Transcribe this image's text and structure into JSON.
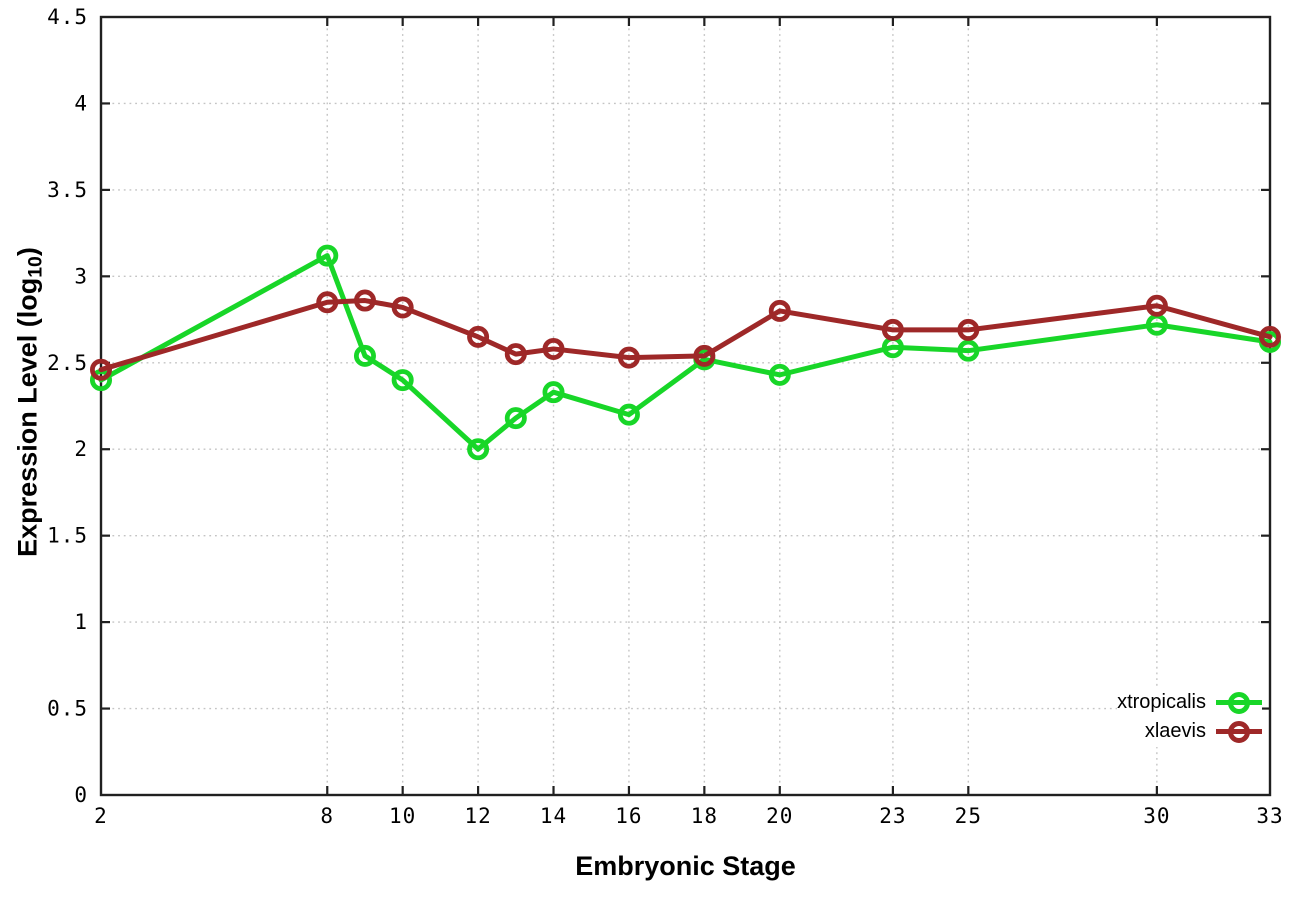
{
  "chart_data": {
    "type": "line",
    "title": "",
    "xlabel": "Embryonic Stage",
    "ylabel": "Expression Level (log10)",
    "ylabel_parts": {
      "prefix": "Expression Level (log",
      "subscript": "10",
      "suffix": ")"
    },
    "xlim": [
      2,
      33
    ],
    "ylim": [
      0,
      4.5
    ],
    "xticks": [
      2,
      8,
      10,
      12,
      14,
      16,
      18,
      20,
      23,
      25,
      30,
      33
    ],
    "yticks": [
      0,
      0.5,
      1,
      1.5,
      2,
      2.5,
      3,
      3.5,
      4,
      4.5
    ],
    "grid": "dotted",
    "legend_position": "bottom-right",
    "marker": "open-circle",
    "x": [
      2,
      8,
      9,
      10,
      12,
      13,
      14,
      16,
      18,
      20,
      23,
      25,
      30,
      33
    ],
    "series": [
      {
        "name": "xtropicalis",
        "color": "#18d628",
        "values": [
          2.4,
          3.12,
          2.54,
          2.4,
          2.0,
          2.18,
          2.33,
          2.2,
          2.52,
          2.43,
          2.59,
          2.57,
          2.72,
          2.62
        ]
      },
      {
        "name": "xlaevis",
        "color": "#9e2828",
        "values": [
          2.46,
          2.85,
          2.86,
          2.82,
          2.65,
          2.55,
          2.58,
          2.53,
          2.54,
          2.8,
          2.69,
          2.69,
          2.83,
          2.65
        ]
      }
    ]
  },
  "colors": {
    "background": "#ffffff",
    "axis": "#202020",
    "grid": "#c4c4c4",
    "tick_label": "#000000"
  }
}
